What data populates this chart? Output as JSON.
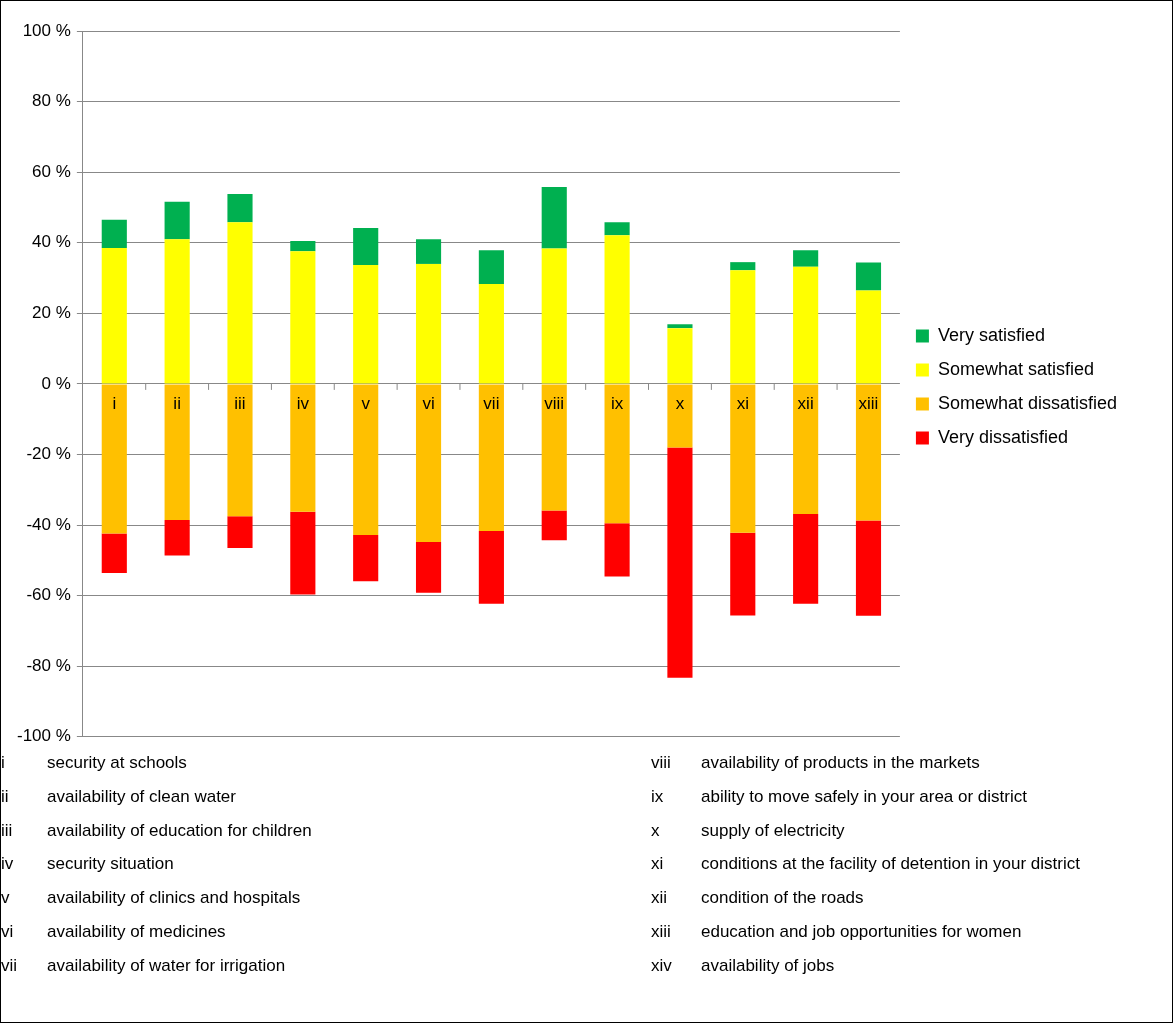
{
  "chart_data": {
    "type": "bar",
    "stacked": true,
    "categories": [
      "i",
      "ii",
      "iii",
      "iv",
      "v",
      "vi",
      "vii",
      "viii",
      "ix",
      "x",
      "xi",
      "xii",
      "xiii"
    ],
    "series": [
      {
        "name": "Somewhat satisfied",
        "color": "#ffff00",
        "values": [
          38.5,
          41.0,
          45.8,
          37.6,
          33.7,
          34.0,
          28.3,
          38.4,
          42.1,
          15.8,
          32.2,
          33.2,
          26.5
        ]
      },
      {
        "name": "Very satisfied",
        "color": "#00b050",
        "values": [
          8.0,
          10.6,
          8.0,
          2.9,
          10.5,
          7.0,
          9.6,
          17.4,
          3.7,
          1.1,
          2.3,
          4.7,
          7.9
        ]
      },
      {
        "name": "Somewhat dissatisfied",
        "color": "#ffc000",
        "values": [
          -42.4,
          -38.6,
          -37.5,
          -36.2,
          -42.8,
          -44.8,
          -41.7,
          -35.9,
          -39.5,
          -18.0,
          -42.2,
          -36.9,
          -38.7
        ]
      },
      {
        "name": "Very dissatisfied",
        "color": "#ff0000",
        "values": [
          -11.2,
          -10.0,
          -9.0,
          -23.5,
          -13.1,
          -14.4,
          -20.6,
          -8.4,
          -15.1,
          -65.3,
          -23.4,
          -25.4,
          -27.0
        ]
      }
    ],
    "ylim": [
      -100,
      100
    ],
    "yticks": [
      {
        "value": -100,
        "label": "-100 %"
      },
      {
        "value": -80,
        "label": "-80 %"
      },
      {
        "value": -60,
        "label": "-60 %"
      },
      {
        "value": -40,
        "label": "-40 %"
      },
      {
        "value": -20,
        "label": "-20 %"
      },
      {
        "value": 0,
        "label": "0 %"
      },
      {
        "value": 20,
        "label": "20 %"
      },
      {
        "value": 40,
        "label": "40 %"
      },
      {
        "value": 60,
        "label": "60 %"
      },
      {
        "value": 80,
        "label": "80 %"
      },
      {
        "value": 100,
        "label": "100 %"
      }
    ],
    "grid": "y",
    "legend": "right",
    "annotations": [
      "i security at schools",
      "ii availability of clean water",
      "iii availability of education for children",
      "iv security situation",
      "v availability of clinics and hospitals",
      "vi availability of medicines",
      "vii availability of water for irrigation",
      "viii availability of products in the markets",
      "ix ability to move safely in your area or district",
      "x supply of electricity",
      "xi conditions at the facility of detention in your district",
      "xii condition of the roads",
      "xiii education and job opportunities for women",
      "xiv availability of jobs"
    ]
  }
}
